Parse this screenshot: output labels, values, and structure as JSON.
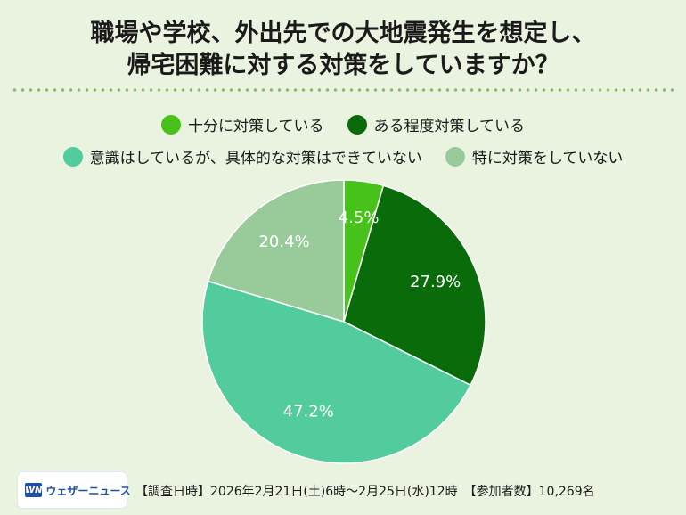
{
  "title": {
    "line1": "職場や学校、外出先での大地震発生を想定し、",
    "line2": "帰宅困難に対する対策をしていますか？"
  },
  "legend": [
    {
      "label": "十分に対策している",
      "color": "#47c21a"
    },
    {
      "label": "ある程度対策している",
      "color": "#0a6b0a"
    },
    {
      "label": "意識はしているが、具体的な対策はできていない",
      "color": "#52cc9c"
    },
    {
      "label": "特に対策をしていない",
      "color": "#98ca9a"
    }
  ],
  "chart_data": {
    "type": "pie",
    "categories": [
      "十分に対策している",
      "ある程度対策している",
      "意識はしているが、具体的な対策はできていない",
      "特に対策をしていない"
    ],
    "values": [
      4.5,
      27.9,
      47.2,
      20.4
    ],
    "labels": [
      "4.5%",
      "27.9%",
      "47.2%",
      "20.4%"
    ],
    "colors": [
      "#47c21a",
      "#0a6b0a",
      "#52cc9c",
      "#98ca9a"
    ],
    "start": "12 o'clock, clockwise"
  },
  "footer": {
    "logo_mark": "WN",
    "logo_text": "ウェザーニュース",
    "note": "【調査日時】2026年2月21日(土)6時～2月25日(水)12時　【参加者数】10,269名"
  }
}
